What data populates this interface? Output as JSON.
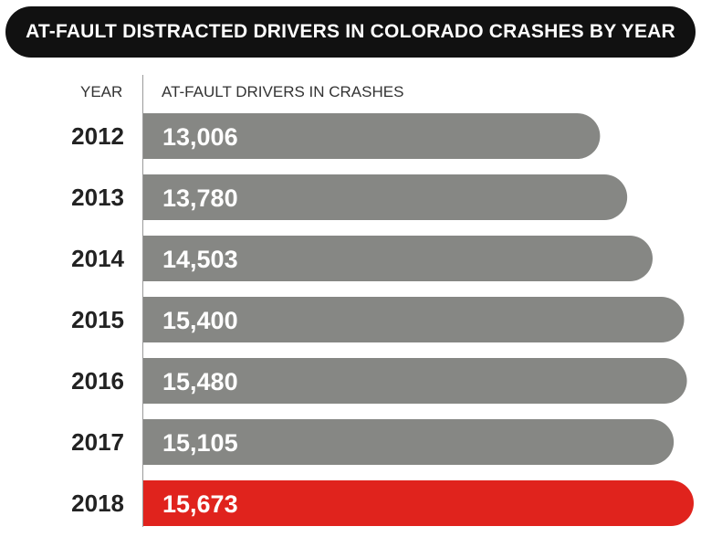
{
  "title": "AT-FAULT DISTRACTED DRIVERS IN COLORADO CRASHES BY YEAR",
  "headers": {
    "year": "YEAR",
    "value": "AT-FAULT DRIVERS IN CRASHES"
  },
  "colors": {
    "bar": "#868784",
    "highlight": "#e0231d",
    "title_bg": "#111111",
    "year_text": "#222222",
    "value_text": "#ffffff"
  },
  "chart_data": {
    "type": "bar",
    "orientation": "horizontal",
    "title": "AT-FAULT DISTRACTED DRIVERS IN COLORADO CRASHES BY YEAR",
    "xlabel": "AT-FAULT DRIVERS IN CRASHES",
    "ylabel": "YEAR",
    "categories": [
      "2012",
      "2013",
      "2014",
      "2015",
      "2016",
      "2017",
      "2018"
    ],
    "values": [
      13006,
      13780,
      14503,
      15400,
      15480,
      15105,
      15673
    ],
    "value_labels": [
      "13,006",
      "13,780",
      "14,503",
      "15,400",
      "15,480",
      "15,105",
      "15,673"
    ],
    "highlight_index": 6,
    "grid": false
  }
}
